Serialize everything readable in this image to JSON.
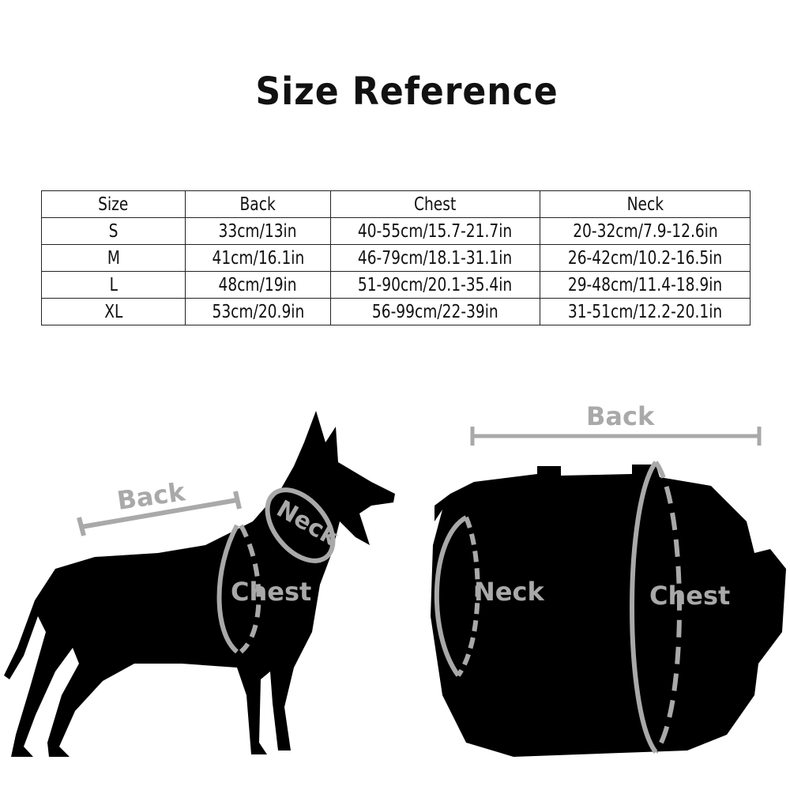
{
  "title": "Size Reference",
  "table": {
    "headers": [
      "Size",
      "Back",
      "Chest",
      "Neck"
    ],
    "rows": [
      [
        "S",
        "33cm/13in",
        "40-55cm/15.7-21.7in",
        "20-32cm/7.9-12.6in"
      ],
      [
        "M",
        "41cm/16.1in",
        "46-79cm/18.1-31.1in",
        "26-42cm/10.2-16.5in"
      ],
      [
        "L",
        "48cm/19in",
        "51-90cm/20.1-35.4in",
        "29-48cm/11.4-18.9in"
      ],
      [
        "XL",
        "53cm/20.9in",
        "56-99cm/22-39in",
        "31-51cm/12.2-20.1in"
      ]
    ]
  },
  "dog_diagram": {
    "back": "Back",
    "neck": "Neck",
    "chest": "Chest"
  },
  "harness_diagram": {
    "back": "Back",
    "neck": "Neck",
    "chest": "Chest"
  },
  "colors": {
    "silhouette": "#000000",
    "measure": "#a9a9a9"
  }
}
